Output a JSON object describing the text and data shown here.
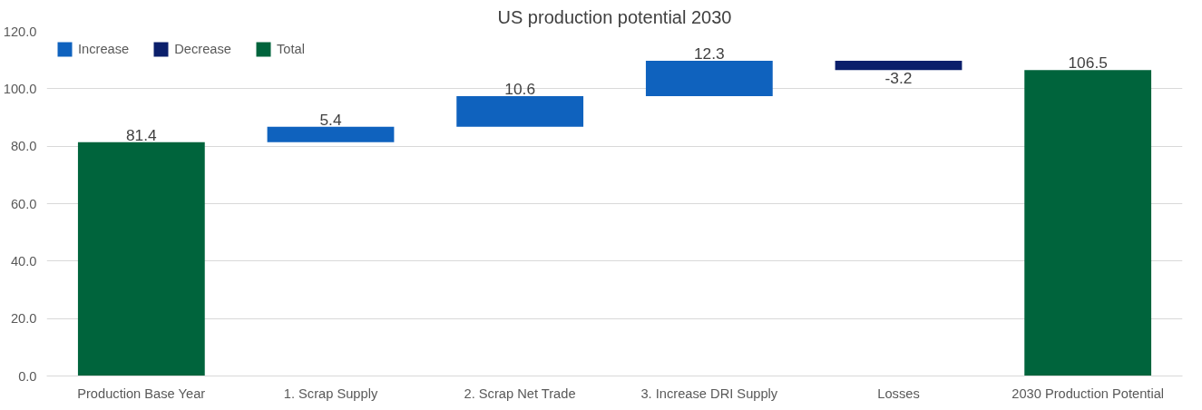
{
  "chart_data": {
    "type": "bar",
    "title": "US production potential 2030",
    "categories": [
      "Production Base Year",
      "1. Scrap Supply",
      "2. Scrap Net Trade",
      "3. Increase DRI Supply",
      "Losses",
      "2030 Production Potential"
    ],
    "series": [
      {
        "name": "Increase",
        "color": "#0f62be",
        "values": [
          null,
          5.4,
          10.6,
          12.3,
          null,
          null
        ],
        "base": [
          null,
          81.4,
          86.8,
          97.4,
          null,
          null
        ]
      },
      {
        "name": "Decrease",
        "color": "#0b1f6b",
        "values": [
          null,
          null,
          null,
          null,
          -3.2,
          null
        ],
        "base": [
          null,
          null,
          null,
          null,
          109.7,
          null
        ]
      },
      {
        "name": "Total",
        "color": "#00643c",
        "values": [
          81.4,
          null,
          null,
          null,
          null,
          106.5
        ],
        "base": [
          0,
          null,
          null,
          null,
          null,
          0
        ]
      }
    ],
    "data_labels": true,
    "ylim": [
      0,
      120
    ],
    "yticks": [
      {
        "value": 0,
        "label": "0.0"
      },
      {
        "value": 20,
        "label": "20.0"
      },
      {
        "value": 40,
        "label": "40.0"
      },
      {
        "value": 60,
        "label": "60.0"
      },
      {
        "value": 80,
        "label": "80.0"
      },
      {
        "value": 100,
        "label": "100.0"
      },
      {
        "value": 120,
        "label": "120.0"
      }
    ],
    "grid": "y",
    "legend": "top left"
  }
}
